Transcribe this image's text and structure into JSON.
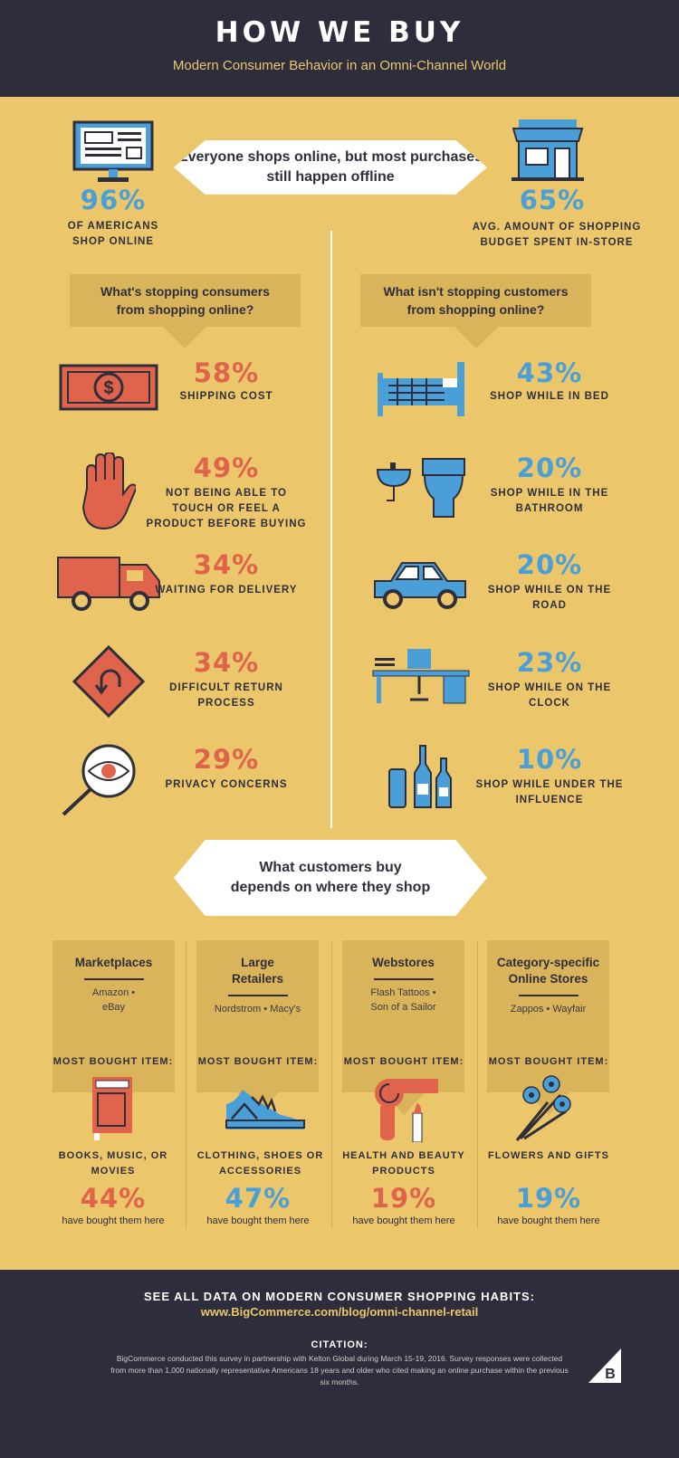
{
  "header": {
    "title": "HOW WE BUY",
    "subtitle": "Modern Consumer Behavior in an Omni-Channel World"
  },
  "intro": {
    "banner": "Everyone shops online, but most purchases still happen offline",
    "left": {
      "value": "96%",
      "label": "OF AMERICANS SHOP ONLINE",
      "icon": "monitor-icon"
    },
    "right": {
      "value": "65%",
      "label": "AVG. AMOUNT OF SHOPPING BUDGET SPENT IN-STORE",
      "icon": "store-icon"
    }
  },
  "stopping": {
    "title": "What's stopping consumers from shopping online?",
    "items": [
      {
        "value": "58%",
        "label": "SHIPPING COST",
        "icon": "dollar-bill-icon"
      },
      {
        "value": "49%",
        "label": "NOT BEING ABLE TO TOUCH OR FEEL A PRODUCT BEFORE BUYING",
        "icon": "hand-icon"
      },
      {
        "value": "34%",
        "label": "WAITING FOR DELIVERY",
        "icon": "truck-icon"
      },
      {
        "value": "34%",
        "label": "DIFFICULT RETURN PROCESS",
        "icon": "return-sign-icon"
      },
      {
        "value": "29%",
        "label": "PRIVACY CONCERNS",
        "icon": "magnifier-eye-icon"
      }
    ]
  },
  "not_stopping": {
    "title": "What isn't stopping customers from shopping online?",
    "items": [
      {
        "value": "43%",
        "label": "SHOP WHILE IN BED",
        "icon": "bed-icon"
      },
      {
        "value": "20%",
        "label": "SHOP WHILE IN THE BATHROOM",
        "icon": "toilet-icon"
      },
      {
        "value": "20%",
        "label": "SHOP WHILE ON THE ROAD",
        "icon": "car-icon"
      },
      {
        "value": "23%",
        "label": "SHOP WHILE ON THE CLOCK",
        "icon": "desk-icon"
      },
      {
        "value": "10%",
        "label": "SHOP WHILE UNDER THE INFLUENCE",
        "icon": "bottles-icon"
      }
    ]
  },
  "where": {
    "banner": "What customers buy depends on where they shop",
    "most_bought": "MOST BOUGHT ITEM:",
    "suffix": "have bought them here",
    "columns": [
      {
        "title": "Marketplaces",
        "stores": "Amazon • eBay",
        "item": "BOOKS, MUSIC, OR MOVIES",
        "value": "44%",
        "color": "#E0634B",
        "icon": "book-icon"
      },
      {
        "title": "Large Retailers",
        "stores": "Nordstrom • Macy's",
        "item": "CLOTHING, SHOES OR ACCESSORIES",
        "value": "47%",
        "color": "#4A9FD8",
        "icon": "shoe-icon"
      },
      {
        "title": "Webstores",
        "stores": "Flash Tattoos • Son of a Sailor",
        "item": "HEALTH AND BEAUTY PRODUCTS",
        "value": "19%",
        "color": "#E0634B",
        "icon": "hairdryer-lipstick-icon"
      },
      {
        "title": "Category-specific Online Stores",
        "stores": "Zappos • Wayfair",
        "item": "FLOWERS AND GIFTS",
        "value": "19%",
        "color": "#4A9FD8",
        "icon": "flowers-icon"
      }
    ]
  },
  "footer": {
    "cta": "SEE ALL DATA ON MODERN CONSUMER SHOPPING HABITS:",
    "link": "www.BigCommerce.com/blog/omni-channel-retail",
    "citation_title": "CITATION:",
    "citation": "BigCommerce conducted this survey in partnership with Kelton Global during March 15-19, 2016. Survey responses were collected from more than 1,000 nationally representative Americans 18 years and older who cited making an online purchase within the previous six months.",
    "logo": "B"
  },
  "colors": {
    "background": "#EBC66A",
    "dark": "#2E2D3B",
    "red": "#E0634B",
    "blue": "#4A9FD8"
  }
}
